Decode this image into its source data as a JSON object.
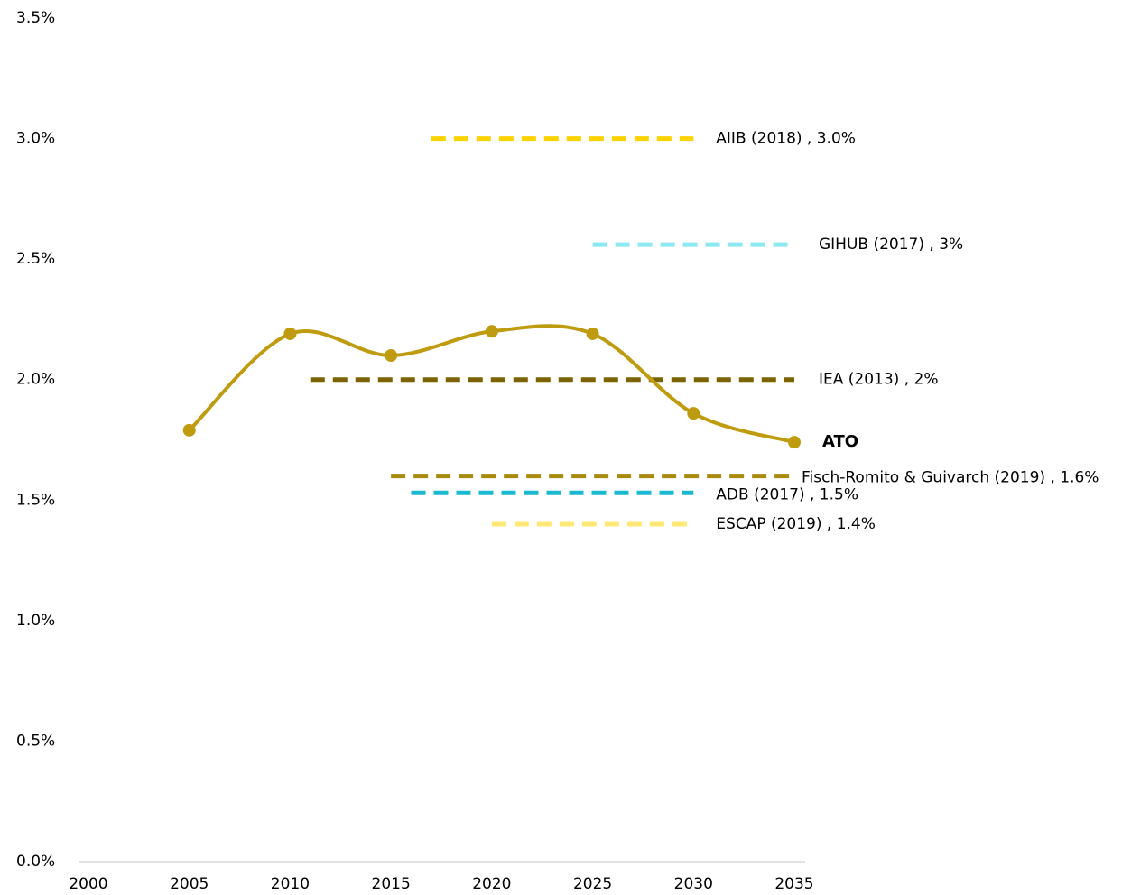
{
  "chart_data": {
    "type": "line",
    "xlim": [
      2000,
      2035
    ],
    "xticks": [
      2000,
      2005,
      2010,
      2015,
      2020,
      2025,
      2030,
      2035
    ],
    "ylim": [
      0,
      3.5
    ],
    "yticks": [
      {
        "value": 0,
        "label": "0.0%"
      },
      {
        "value": 0.5,
        "label": "0.5%"
      },
      {
        "value": 1,
        "label": "1.0%"
      },
      {
        "value": 1.5,
        "label": "1.5%"
      },
      {
        "value": 2,
        "label": "2.0%"
      },
      {
        "value": 2.5,
        "label": "2.5%"
      },
      {
        "value": 3,
        "label": "3.0%"
      },
      {
        "value": 3.5,
        "label": "3.5%"
      }
    ],
    "series": [
      {
        "name": "ATO",
        "color": "#bf9b0f",
        "x": [
          2005,
          2010,
          2015,
          2020,
          2025,
          2030,
          2035
        ],
        "values": [
          1.79,
          2.19,
          2.1,
          2.2,
          2.19,
          1.86,
          1.74
        ]
      }
    ],
    "references": [
      {
        "name": "AIIB (2018) , 3.0%",
        "color": "#fcd200",
        "value": 3.0,
        "x": [
          2017,
          2030
        ]
      },
      {
        "name": "GIHUB (2017) , 3%",
        "color": "#8ce9f2",
        "value": 2.56,
        "x": [
          2025,
          2035
        ]
      },
      {
        "name": "IEA (2013) , 2%",
        "color": "#7a6300",
        "value": 2.0,
        "x": [
          2011,
          2035
        ]
      },
      {
        "name": "Fisch-Romito & Guivarch (2019) , 1.6%",
        "color": "#a88a0c",
        "value": 1.6,
        "x": [
          2015,
          2035
        ]
      },
      {
        "name": "ADB (2017) , 1.5%",
        "color": "#1bb9cf",
        "value": 1.53,
        "x": [
          2016,
          2030
        ]
      },
      {
        "name": "ESCAP (2019) , 1.4%",
        "color": "#ffe873",
        "value": 1.4,
        "x": [
          2020,
          2030
        ]
      }
    ]
  }
}
